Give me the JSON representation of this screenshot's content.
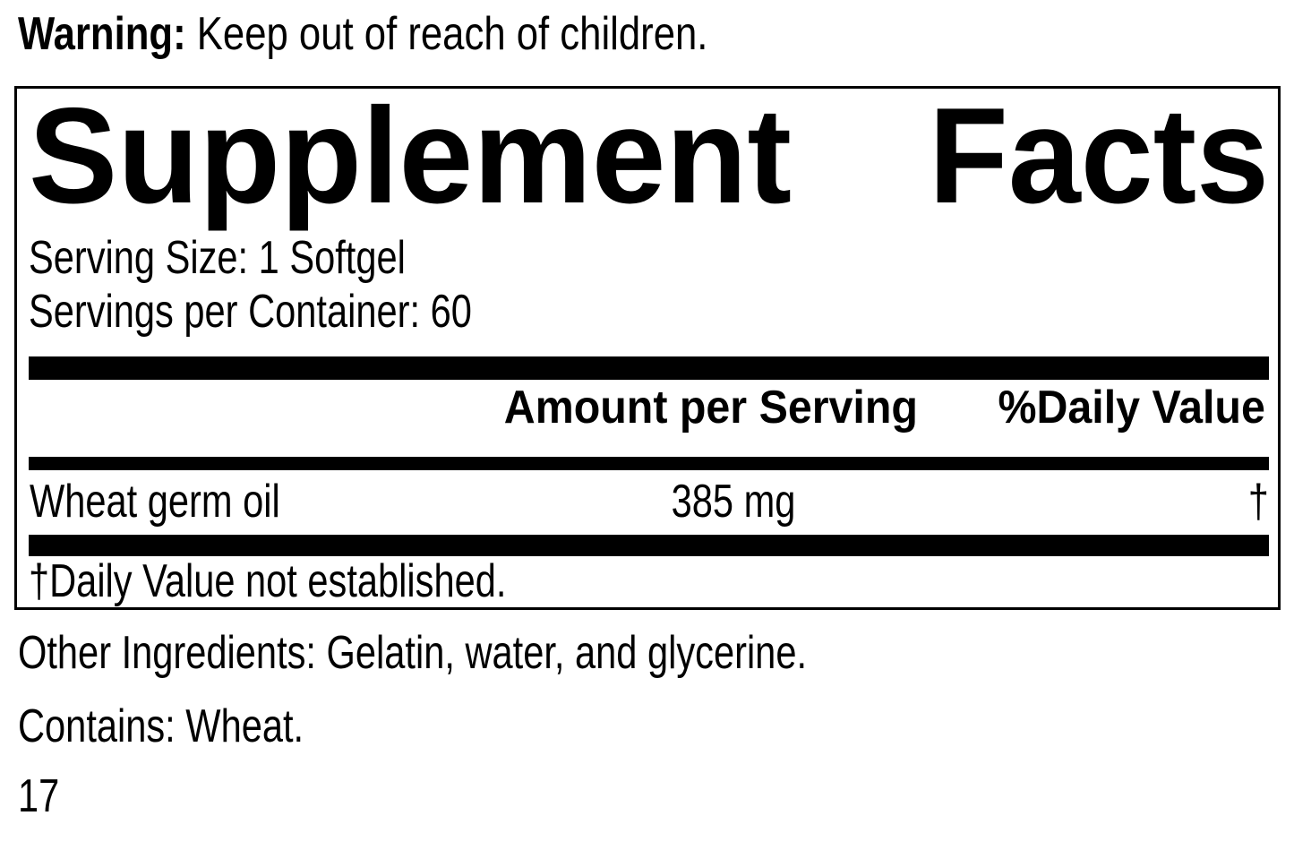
{
  "warning": {
    "label": "Warning:",
    "text": "Keep out of reach of children."
  },
  "supplement_facts": {
    "title_words": [
      "Supplement",
      "Facts"
    ],
    "serving_size": "Serving Size: 1 Softgel",
    "servings_per_container": "Servings per Container: 60",
    "columns": {
      "amount": "Amount per Serving",
      "daily_value": "%Daily Value"
    },
    "rows": [
      {
        "name": "Wheat germ oil",
        "amount": "385 mg",
        "daily_value": "†"
      }
    ],
    "footnote": "†Daily Value not established."
  },
  "other_ingredients": "Other Ingredients: Gelatin, water, and glycerine.",
  "contains": "Contains: Wheat.",
  "page_number": "17",
  "colors": {
    "text": "#000000",
    "background": "#ffffff",
    "rule": "#000000"
  }
}
